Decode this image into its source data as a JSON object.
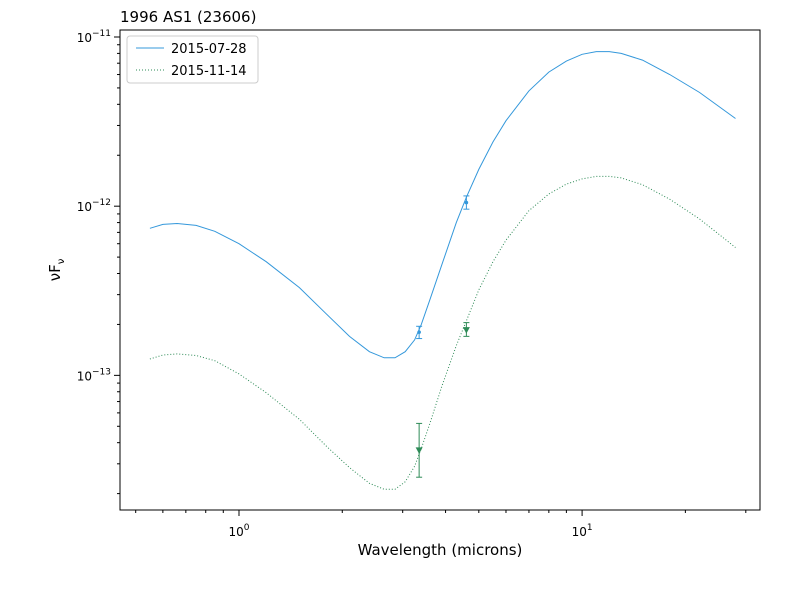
{
  "chart_data": {
    "type": "line",
    "title": "1996 AS1 (23606)",
    "xlabel": "Wavelength (microns)",
    "ylabel_base": "νF",
    "ylabel_sub": "ν",
    "xscale": "log",
    "yscale": "log",
    "xlim": [
      0.45,
      33
    ],
    "ylim": [
      1.6e-14,
      1.1e-11
    ],
    "grid": false,
    "legend_position": "top-left",
    "x_ticks": [
      {
        "value": 1,
        "base": "10",
        "exp": "0"
      },
      {
        "value": 10,
        "base": "10",
        "exp": "1"
      }
    ],
    "y_ticks": [
      {
        "value": 1e-13,
        "base": "10",
        "exp": "−13"
      },
      {
        "value": 1e-12,
        "base": "10",
        "exp": "−12"
      },
      {
        "value": 1e-11,
        "base": "10",
        "exp": "−11"
      }
    ],
    "series": [
      {
        "name": "2015-07-28",
        "color": "#3498db",
        "style": "solid",
        "marker": "circle",
        "x": [
          0.55,
          0.6,
          0.66,
          0.75,
          0.85,
          1.0,
          1.2,
          1.5,
          1.8,
          2.1,
          2.4,
          2.65,
          2.85,
          3.05,
          3.25,
          3.4,
          3.6,
          3.9,
          4.3,
          4.6,
          5.0,
          5.5,
          6.0,
          7.0,
          8.0,
          9.0,
          10.0,
          11.0,
          12.0,
          13.0,
          15.0,
          18.0,
          22.0,
          28.0
        ],
        "y": [
          7.4e-13,
          7.8e-13,
          7.9e-13,
          7.7e-13,
          7.1e-13,
          6e-13,
          4.7e-13,
          3.3e-13,
          2.3e-13,
          1.7e-13,
          1.38e-13,
          1.27e-13,
          1.27e-13,
          1.38e-13,
          1.62e-13,
          2e-13,
          2.8e-13,
          4.5e-13,
          8e-13,
          1.13e-12,
          1.65e-12,
          2.4e-12,
          3.2e-12,
          4.8e-12,
          6.2e-12,
          7.2e-12,
          7.9e-12,
          8.2e-12,
          8.2e-12,
          8e-12,
          7.3e-12,
          6e-12,
          4.7e-12,
          3.3e-12
        ],
        "points": [
          {
            "x": 3.35,
            "y": 1.8e-13,
            "yerr_low": 1.65e-13,
            "yerr_high": 1.95e-13
          },
          {
            "x": 4.6,
            "y": 1.05e-12,
            "yerr_low": 9.6e-13,
            "yerr_high": 1.15e-12
          }
        ]
      },
      {
        "name": "2015-11-14",
        "color": "#2e8b57",
        "style": "dotted",
        "marker": "triangle-down",
        "x": [
          0.55,
          0.6,
          0.66,
          0.75,
          0.85,
          1.0,
          1.2,
          1.5,
          1.8,
          2.1,
          2.4,
          2.65,
          2.85,
          3.05,
          3.25,
          3.4,
          3.6,
          3.9,
          4.3,
          4.6,
          5.0,
          5.5,
          6.0,
          7.0,
          8.0,
          9.0,
          10.0,
          11.0,
          12.0,
          13.0,
          15.0,
          18.0,
          22.0,
          28.0
        ],
        "y": [
          1.25e-13,
          1.32e-13,
          1.34e-13,
          1.31e-13,
          1.22e-13,
          1.02e-13,
          7.9e-14,
          5.5e-14,
          3.8e-14,
          2.85e-14,
          2.3e-14,
          2.12e-14,
          2.12e-14,
          2.35e-14,
          2.9e-14,
          3.7e-14,
          5.2e-14,
          8.6e-14,
          1.5e-13,
          2.1e-13,
          3.2e-13,
          4.7e-13,
          6.3e-13,
          9.4e-13,
          1.18e-12,
          1.35e-12,
          1.45e-12,
          1.5e-12,
          1.5e-12,
          1.47e-12,
          1.34e-12,
          1.1e-12,
          8.4e-13,
          5.7e-13
        ],
        "points": [
          {
            "x": 3.35,
            "y": 3.6e-14,
            "yerr_low": 2.5e-14,
            "yerr_high": 5.2e-14
          },
          {
            "x": 4.6,
            "y": 1.85e-13,
            "yerr_low": 1.7e-13,
            "yerr_high": 2.05e-13
          }
        ]
      }
    ]
  }
}
